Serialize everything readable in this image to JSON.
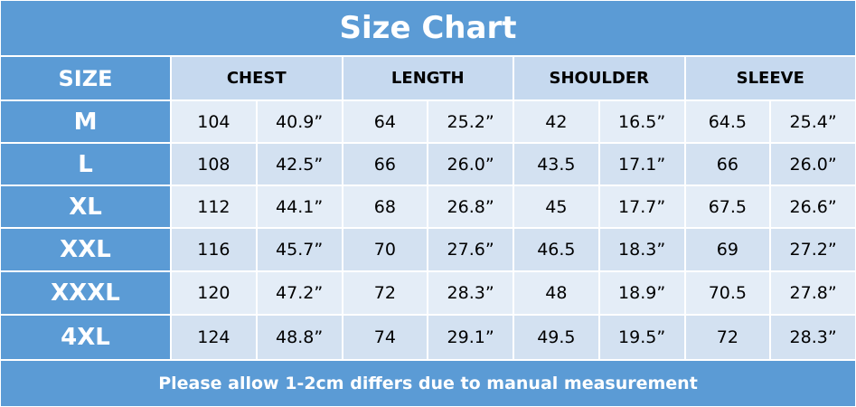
{
  "header": {
    "title": "Size Chart"
  },
  "table": {
    "size_header": "SIZE",
    "groups": [
      "CHEST",
      "LENGTH",
      "SHOULDER",
      "SLEEVE"
    ],
    "rows": [
      [
        "M",
        "104",
        "40.9”",
        "64",
        "25.2”",
        "42",
        "16.5”",
        "64.5",
        "25.4”"
      ],
      [
        "L",
        "108",
        "42.5”",
        "66",
        "26.0”",
        "43.5",
        "17.1”",
        "66",
        "26.0”"
      ],
      [
        "XL",
        "112",
        "44.1”",
        "68",
        "26.8”",
        "45",
        "17.7”",
        "67.5",
        "26.6”"
      ],
      [
        "XXL",
        "116",
        "45.7”",
        "70",
        "27.6”",
        "46.5",
        "18.3”",
        "69",
        "27.2”"
      ],
      [
        "XXXL",
        "120",
        "47.2”",
        "72",
        "28.3”",
        "48",
        "18.9”",
        "70.5",
        "27.8”"
      ],
      [
        "4XL",
        "124",
        "48.8”",
        "74",
        "29.1”",
        "49.5",
        "19.5”",
        "72",
        "28.3”"
      ]
    ]
  },
  "footer": {
    "note": "Please allow 1-2cm differs due to manual measurement"
  }
}
